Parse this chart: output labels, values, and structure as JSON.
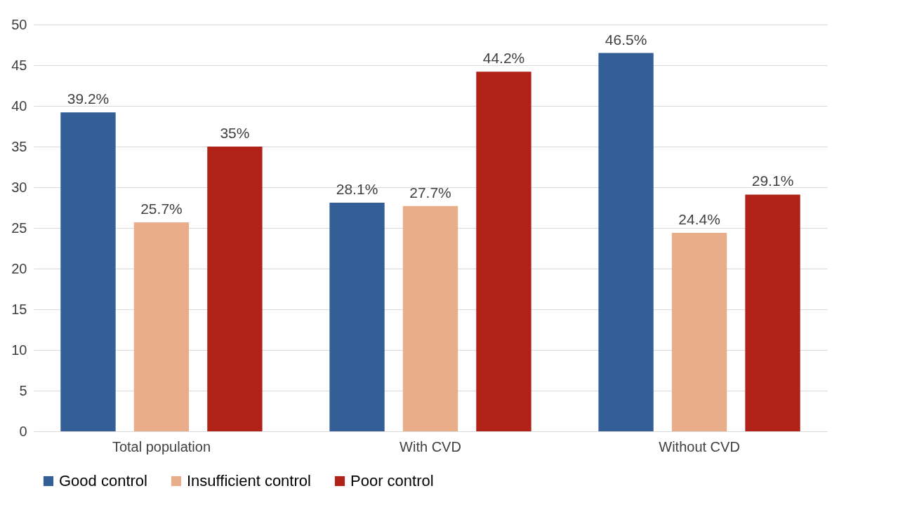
{
  "chart_data": {
    "type": "bar",
    "categories": [
      "Total population",
      "With CVD",
      "Without CVD"
    ],
    "series": [
      {
        "name": "Good control",
        "color": "#335f96",
        "values": [
          39.2,
          28.1,
          46.5
        ],
        "value_labels": [
          "39.2%",
          "28.1%",
          "46.5%"
        ]
      },
      {
        "name": "Insufficient control",
        "color": "#e9ad8a",
        "values": [
          25.7,
          27.7,
          24.4
        ],
        "value_labels": [
          "25.7%",
          "27.7%",
          "24.4%"
        ]
      },
      {
        "name": "Poor control",
        "color": "#b02118",
        "values": [
          35,
          44.2,
          29.1
        ],
        "value_labels": [
          "35%",
          "44.2%",
          "29.1%"
        ]
      }
    ],
    "ylim": [
      0,
      50
    ],
    "yticks": [
      0,
      5,
      10,
      15,
      20,
      25,
      30,
      35,
      40,
      45,
      50
    ],
    "grid": "y",
    "legend": "bottom"
  }
}
